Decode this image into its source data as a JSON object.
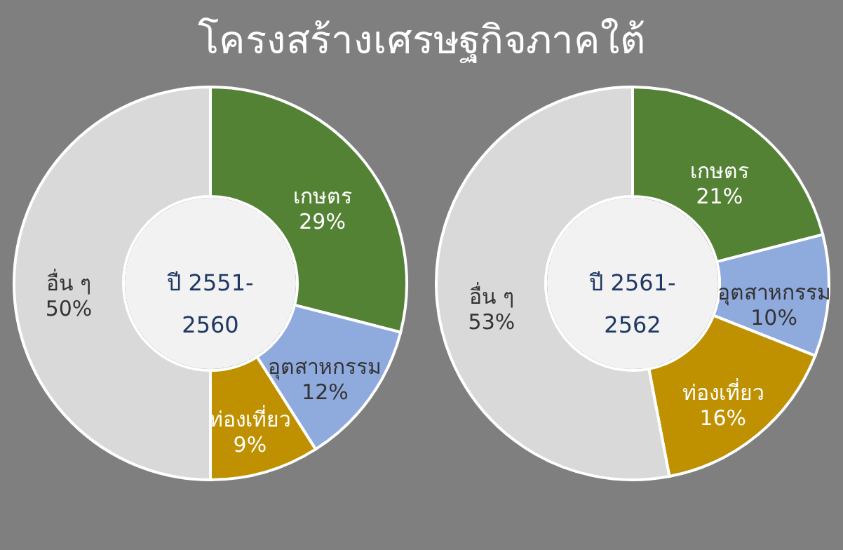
{
  "chart_data": [
    {
      "type": "donut",
      "title": "โครงสร้างเศรษฐกิจภาคใต้",
      "annotations": [
        "ปี 2551-2560"
      ],
      "categories": [
        "เกษตร",
        "อุตสาหกรรม",
        "ท่องเที่ยว",
        "อื่น ๆ"
      ],
      "values": [
        29,
        12,
        9,
        50
      ],
      "value_labels": [
        "29%",
        "12%",
        "9%",
        "50%"
      ],
      "colors": [
        "#548235",
        "#8faadc",
        "#bf9000",
        "#d9d9d9"
      ],
      "legend": false
    },
    {
      "type": "donut",
      "annotations": [
        "ปี 2561-2562"
      ],
      "categories": [
        "เกษตร",
        "อุตสาหกรรม",
        "ท่องเที่ยว",
        "อื่น ๆ"
      ],
      "values": [
        21,
        10,
        16,
        53
      ],
      "value_labels": [
        "21%",
        "10%",
        "16%",
        "53%"
      ],
      "colors": [
        "#548235",
        "#8faadc",
        "#bf9000",
        "#d9d9d9"
      ],
      "legend": false
    }
  ]
}
